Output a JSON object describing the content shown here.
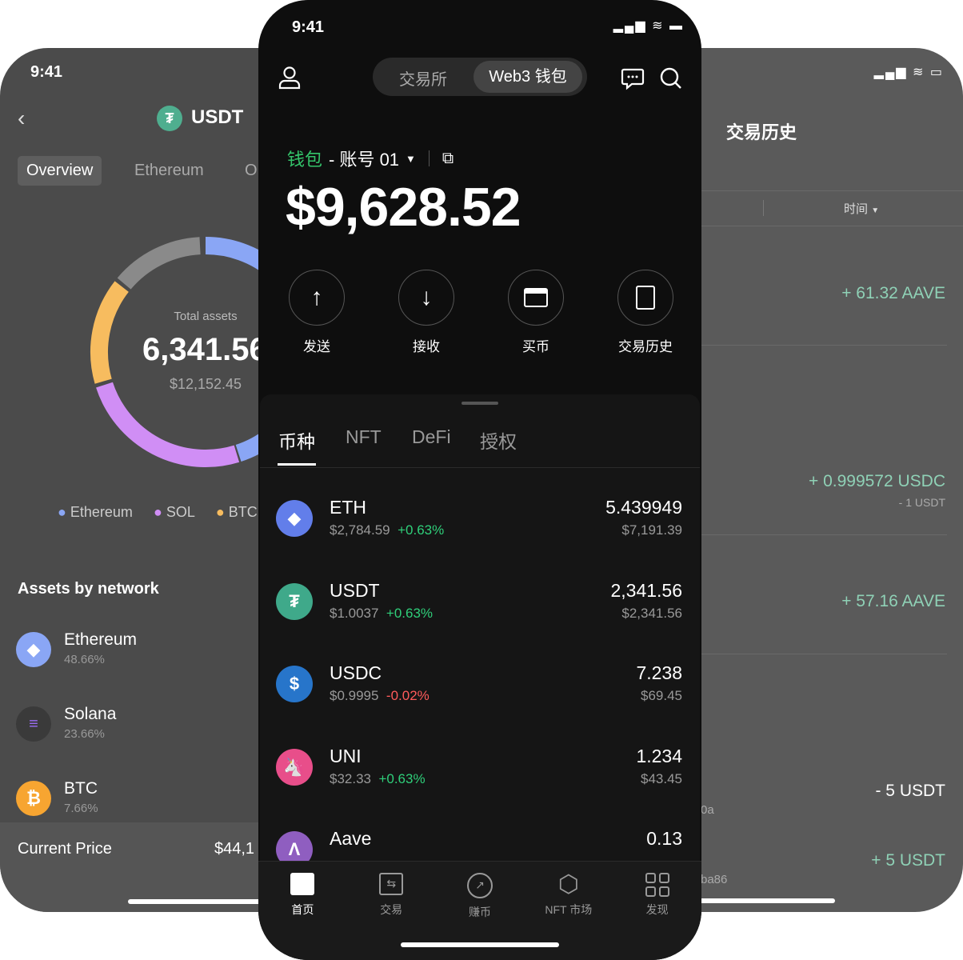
{
  "status": {
    "time": "9:41"
  },
  "left": {
    "title": "USDT",
    "tabs": [
      "Overview",
      "Ethereum",
      "O"
    ],
    "total_label": "Total assets",
    "total_value": "6,341.56",
    "total_usd": "$12,152.45",
    "legend": [
      {
        "name": "Ethereum",
        "color": "#8aa6f5"
      },
      {
        "name": "SOL",
        "color": "#d08ef5"
      },
      {
        "name": "BTC",
        "color": "#f7bc5f"
      }
    ],
    "donut": [
      {
        "color": "#8aa6f5",
        "from": 0,
        "to": 162
      },
      {
        "color": "#d08ef5",
        "from": 163,
        "to": 252
      },
      {
        "color": "#f7bc5f",
        "from": 254,
        "to": 308
      },
      {
        "color": "#8a8a8a",
        "from": 310,
        "to": 357
      }
    ],
    "section_title": "Assets by network",
    "networks": [
      {
        "name": "Ethereum",
        "pct": "48.66%"
      },
      {
        "name": "Solana",
        "pct": "23.66%"
      },
      {
        "name": "BTC",
        "pct": "7.66%"
      }
    ],
    "price_label": "Current Price",
    "price_value": "$44,1"
  },
  "mid": {
    "segment": [
      "交易所",
      "Web3 钱包"
    ],
    "wallet_label": "钱包",
    "account": "- 账号 01",
    "balance": "$9,628.52",
    "actions": [
      "发送",
      "接收",
      "买币",
      "交易历史"
    ],
    "tabs": [
      "币种",
      "NFT",
      "DeFi",
      "授权"
    ],
    "tokens": [
      {
        "symbol": "ETH",
        "price": "$2,784.59",
        "change": "+0.63%",
        "up": true,
        "amount": "5.439949",
        "value": "$7,191.39",
        "color": "#627eea"
      },
      {
        "symbol": "USDT",
        "price": "$1.0037",
        "change": "+0.63%",
        "up": true,
        "amount": "2,341.56",
        "value": "$2,341.56",
        "color": "#3fa98a"
      },
      {
        "symbol": "USDC",
        "price": "$0.9995",
        "change": "-0.02%",
        "up": false,
        "amount": "7.238",
        "value": "$69.45",
        "color": "#2775ca"
      },
      {
        "symbol": "UNI",
        "price": "$32.33",
        "change": "+0.63%",
        "up": true,
        "amount": "1.234",
        "value": "$43.45",
        "color": "#e84e8a"
      },
      {
        "symbol": "Aave",
        "amount": "0.13",
        "color": "#8f5ec0"
      }
    ],
    "nav": [
      "首页",
      "交易",
      "赚币",
      "NFT 市场",
      "发现"
    ]
  },
  "right": {
    "title": "交易历史",
    "filter": "时间",
    "items": [
      {
        "amount": "+ 61.32 AAVE",
        "sub": "",
        "pos": true
      },
      {
        "amount": "+ 0.999572 USDC",
        "sub": "- 1 USDT",
        "pos": true
      },
      {
        "amount": "+ 57.16 AAVE",
        "sub": "",
        "pos": true
      },
      {
        "amount": "- 5 USDT",
        "sub": "",
        "pos": false,
        "left": "0a"
      },
      {
        "amount": "+ 5 USDT",
        "sub": "",
        "pos": true,
        "left": "ba86"
      }
    ]
  }
}
